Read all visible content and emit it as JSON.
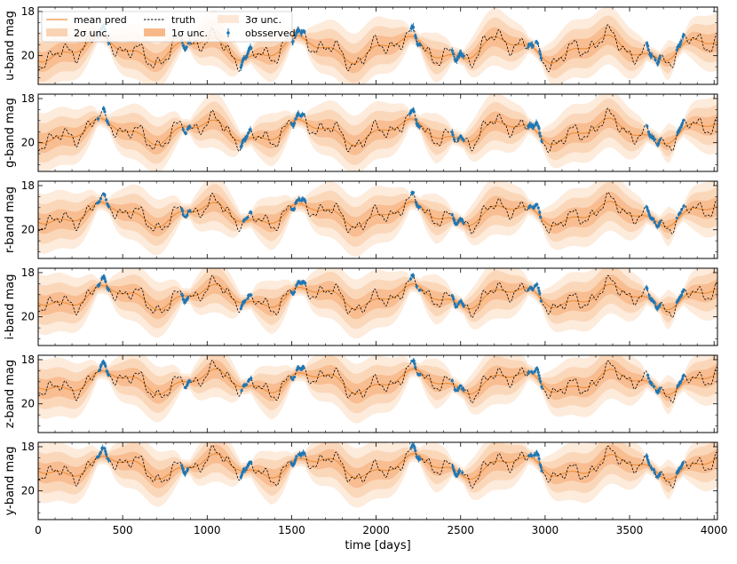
{
  "chart_data": {
    "type": "line",
    "xlabel": "time [days]",
    "x_ticks": [
      0,
      500,
      1000,
      1500,
      2000,
      2500,
      3000,
      3500,
      4000
    ],
    "xlim": [
      0,
      4020
    ],
    "y_inverted": true,
    "y_ticks": [
      18,
      20
    ],
    "legend": {
      "placement": "top-left",
      "entries": [
        {
          "label": "mean pred",
          "kind": "line"
        },
        {
          "label": "2σ unc.",
          "kind": "band2"
        },
        {
          "label": "truth",
          "kind": "dashed"
        },
        {
          "label": "1σ unc.",
          "kind": "band1"
        },
        {
          "label": "3σ unc.",
          "kind": "band3"
        },
        {
          "label": "obsserved",
          "kind": "errorbar"
        }
      ]
    },
    "colors": {
      "mean": "#f0913a",
      "band1": "#f7b98a",
      "band2": "#fad3b4",
      "band3": "#fde7d6",
      "truth": "#000000",
      "observed": "#1f77b4"
    },
    "panels": [
      {
        "ylabel": "u-band mag",
        "ylim": [
          21.3,
          17.8
        ],
        "baseline": 19.7,
        "amp": 1.0,
        "obs_err": 0.12
      },
      {
        "ylabel": "g-band mag",
        "ylim": [
          21.3,
          17.8
        ],
        "baseline": 19.5,
        "amp": 0.95,
        "obs_err": 0.1
      },
      {
        "ylabel": "r-band mag",
        "ylim": [
          21.3,
          17.8
        ],
        "baseline": 19.3,
        "amp": 0.9,
        "obs_err": 0.08
      },
      {
        "ylabel": "i-band mag",
        "ylim": [
          21.3,
          17.8
        ],
        "baseline": 19.1,
        "amp": 0.9,
        "obs_err": 0.08
      },
      {
        "ylabel": "z-band mag",
        "ylim": [
          21.3,
          17.8
        ],
        "baseline": 19.0,
        "amp": 0.9,
        "obs_err": 0.08
      },
      {
        "ylabel": "y-band mag",
        "ylim": [
          21.3,
          17.8
        ],
        "baseline": 18.9,
        "amp": 0.9,
        "obs_err": 0.1
      }
    ],
    "observation_windows": [
      [
        350,
        420
      ],
      [
        850,
        900
      ],
      [
        1200,
        1260
      ],
      [
        1500,
        1580
      ],
      [
        2200,
        2260
      ],
      [
        2450,
        2520
      ],
      [
        2900,
        2980
      ],
      [
        3600,
        3680
      ],
      [
        3780,
        3820
      ]
    ]
  }
}
